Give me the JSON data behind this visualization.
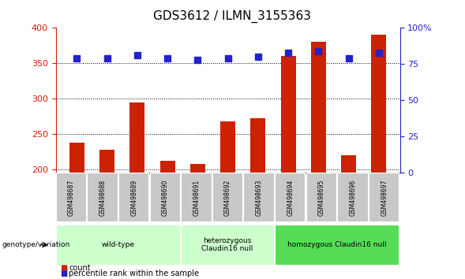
{
  "title": "GDS3612 / ILMN_3155363",
  "samples": [
    "GSM498687",
    "GSM498688",
    "GSM498689",
    "GSM498690",
    "GSM498691",
    "GSM498692",
    "GSM498693",
    "GSM498694",
    "GSM498695",
    "GSM498696",
    "GSM498697"
  ],
  "counts": [
    238,
    228,
    295,
    212,
    208,
    268,
    272,
    360,
    380,
    220,
    390
  ],
  "percentile_ranks_pct": [
    79,
    79,
    81,
    79,
    78,
    79,
    80,
    83,
    84,
    79,
    83
  ],
  "ymin": 195,
  "ymax": 400,
  "yticks": [
    200,
    250,
    300,
    350,
    400
  ],
  "right_yticks_pct": [
    0,
    25,
    50,
    75,
    100
  ],
  "bar_color": "#cc2200",
  "blue_color": "#2222cc",
  "group_spans": [
    {
      "label": "wild-type",
      "color": "#ccffcc",
      "cols": [
        0,
        1,
        2,
        3
      ]
    },
    {
      "label": "heterozygous\nClaudin16 null",
      "color": "#ccffcc",
      "cols": [
        4,
        5,
        6
      ]
    },
    {
      "label": "homozygous Claudin16 null",
      "color": "#55dd55",
      "cols": [
        7,
        8,
        9,
        10
      ]
    }
  ],
  "legend_count_color": "#cc2200",
  "legend_pct_color": "#2222cc",
  "ylabel_left_color": "#cc2200",
  "ylabel_right_color": "#2222cc"
}
